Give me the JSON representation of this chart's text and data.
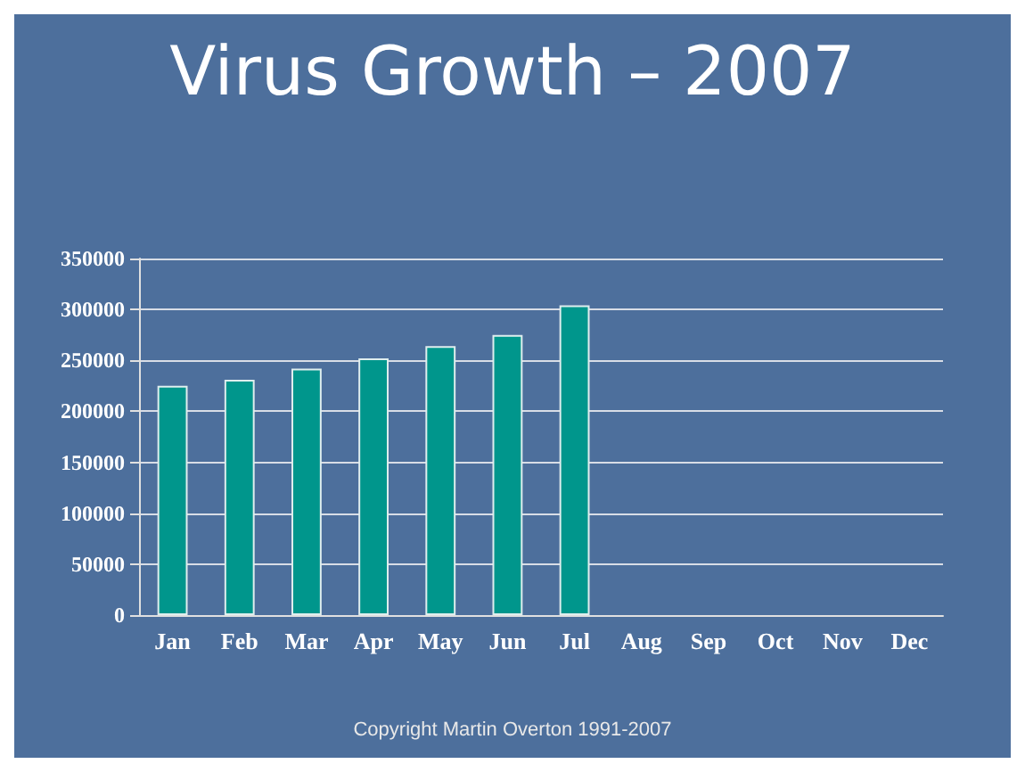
{
  "chart_data": {
    "type": "bar",
    "title": "Virus Growth – 2007",
    "categories": [
      "Jan",
      "Feb",
      "Mar",
      "Apr",
      "May",
      "Jun",
      "Jul",
      "Aug",
      "Sep",
      "Oct",
      "Nov",
      "Dec"
    ],
    "values": [
      225000,
      231000,
      242000,
      252000,
      264000,
      275000,
      304000,
      null,
      null,
      null,
      null,
      null
    ],
    "color": "#00968c",
    "ylim": [
      0,
      350000
    ],
    "yticks": [
      0,
      50000,
      100000,
      150000,
      200000,
      250000,
      300000,
      350000
    ],
    "grid": "y",
    "annotations": [
      "Copyright Martin Overton 1991-2007"
    ]
  }
}
